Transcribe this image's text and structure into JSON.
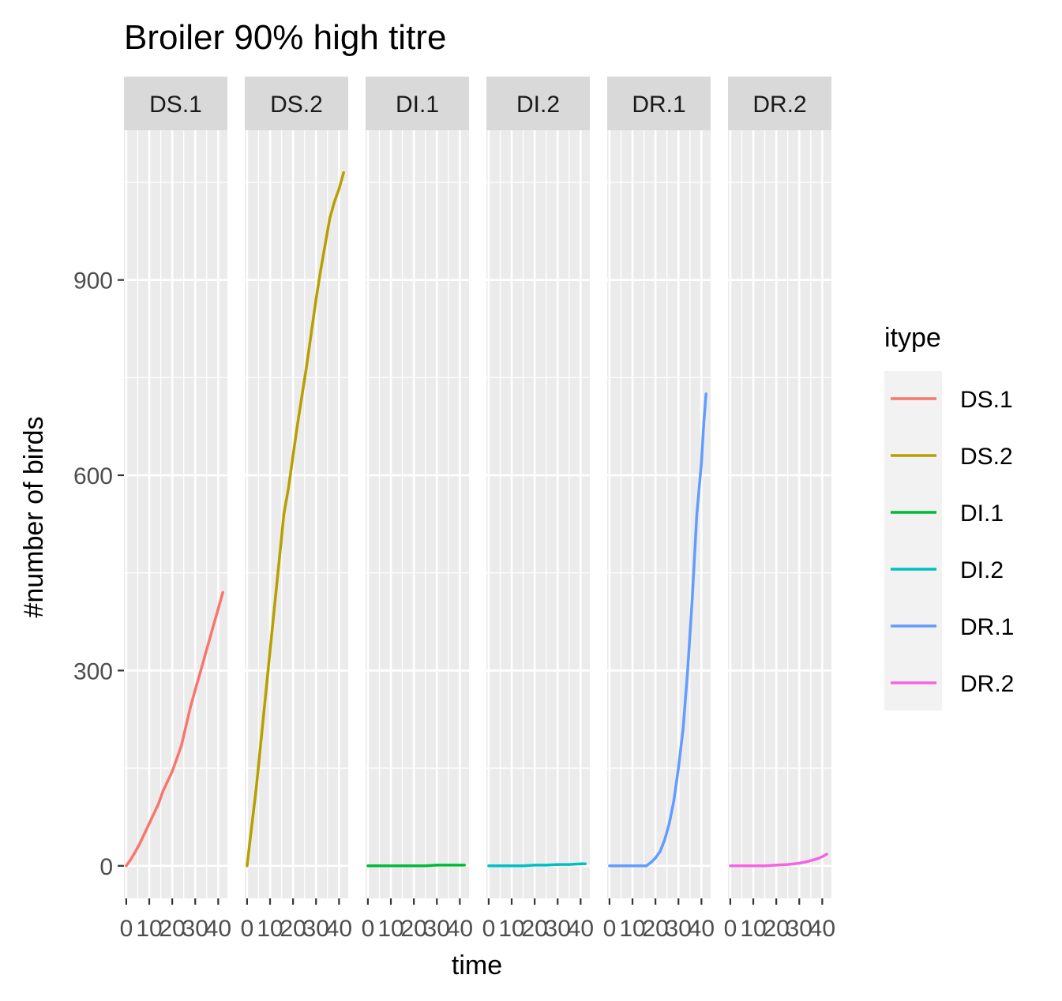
{
  "chart_data": {
    "type": "line",
    "title": "Broiler 90% high titre",
    "xlabel": "time",
    "ylabel": "#number of birds",
    "ylim": [
      -50,
      1130
    ],
    "xlim": [
      -1,
      44
    ],
    "y_ticks": [
      0,
      300,
      600,
      900
    ],
    "x_ticks": [
      0,
      10,
      20,
      30,
      40
    ],
    "grid": true,
    "legend": {
      "title": "itype",
      "placement": "right"
    },
    "facets": [
      "DS.1",
      "DS.2",
      "DI.1",
      "DI.2",
      "DR.1",
      "DR.2"
    ],
    "series": [
      {
        "name": "DS.1",
        "color": "#F8766D",
        "x": [
          0,
          2,
          4,
          6,
          8,
          10,
          12,
          14,
          16,
          18,
          20,
          22,
          24,
          26,
          28,
          30,
          32,
          34,
          36,
          38,
          40,
          42
        ],
        "y": [
          0,
          10,
          22,
          35,
          50,
          65,
          80,
          95,
          115,
          130,
          145,
          165,
          185,
          215,
          245,
          270,
          295,
          320,
          345,
          370,
          395,
          420
        ]
      },
      {
        "name": "DS.2",
        "color": "#B79F00",
        "x": [
          0,
          2,
          4,
          6,
          8,
          10,
          12,
          14,
          16,
          18,
          20,
          22,
          24,
          26,
          28,
          30,
          32,
          34,
          36,
          38,
          40,
          42
        ],
        "y": [
          0,
          60,
          120,
          190,
          260,
          330,
          400,
          470,
          540,
          580,
          630,
          680,
          725,
          770,
          820,
          870,
          915,
          955,
          995,
          1020,
          1040,
          1065
        ]
      },
      {
        "name": "DI.1",
        "color": "#00BA38",
        "x": [
          0,
          5,
          10,
          15,
          20,
          25,
          30,
          35,
          40,
          42
        ],
        "y": [
          0,
          0,
          0,
          0,
          0,
          0,
          1,
          1,
          1,
          1
        ]
      },
      {
        "name": "DI.2",
        "color": "#00BFC4",
        "x": [
          0,
          5,
          10,
          15,
          20,
          25,
          30,
          35,
          40,
          42
        ],
        "y": [
          0,
          0,
          0,
          0,
          1,
          1,
          2,
          2,
          3,
          3
        ]
      },
      {
        "name": "DR.1",
        "color": "#619CFF",
        "x": [
          0,
          4,
          8,
          12,
          16,
          18,
          20,
          22,
          24,
          26,
          28,
          30,
          32,
          34,
          36,
          38,
          40,
          41,
          42
        ],
        "y": [
          0,
          0,
          0,
          0,
          0,
          5,
          12,
          22,
          40,
          65,
          100,
          150,
          210,
          300,
          410,
          540,
          620,
          680,
          725
        ]
      },
      {
        "name": "DR.2",
        "color": "#F564E3",
        "x": [
          0,
          5,
          10,
          15,
          20,
          25,
          30,
          34,
          38,
          40,
          42
        ],
        "y": [
          0,
          0,
          0,
          0,
          1,
          2,
          4,
          7,
          11,
          14,
          18
        ]
      }
    ]
  }
}
